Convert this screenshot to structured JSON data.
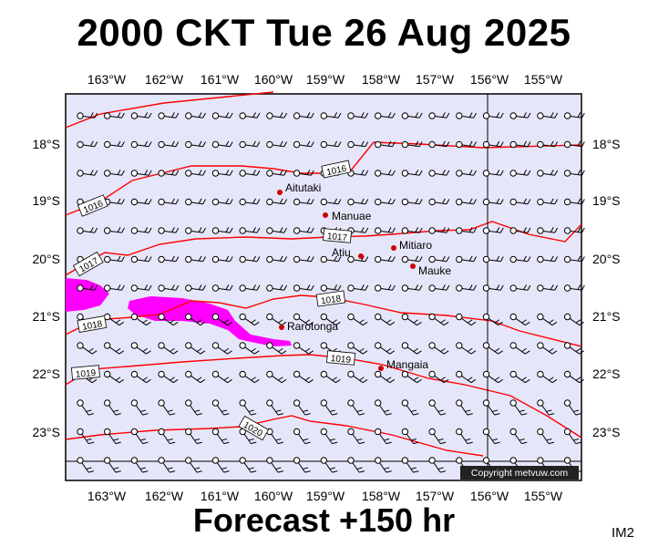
{
  "header": {
    "title": "2000 CKT Tue 26 Aug 2025"
  },
  "footer": {
    "subtitle": "Forecast +150 hr",
    "tag": "IM2"
  },
  "map": {
    "longitude_ticks": [
      "163°W",
      "162°W",
      "161°W",
      "160°W",
      "159°W",
      "158°W",
      "157°W",
      "156°W",
      "155°W"
    ],
    "latitude_ticks": [
      "18°S",
      "19°S",
      "20°S",
      "21°S",
      "22°S",
      "23°S"
    ],
    "isobar_labels": [
      "1016",
      "1016",
      "1017",
      "1017",
      "1018",
      "1018",
      "1019",
      "1019",
      "1020"
    ],
    "places": [
      {
        "name": "Aitutaki"
      },
      {
        "name": "Manuae"
      },
      {
        "name": "Atiu"
      },
      {
        "name": "Mitiaro"
      },
      {
        "name": "Mauke"
      },
      {
        "name": "Rarotonga"
      },
      {
        "name": "Mangaia"
      }
    ],
    "copyright": "Copyright metvuw.com",
    "colors": {
      "background": "#e6e6fa",
      "isobar": "#ff0000",
      "rain": "#ff00ff",
      "place": "#cc0000"
    }
  }
}
